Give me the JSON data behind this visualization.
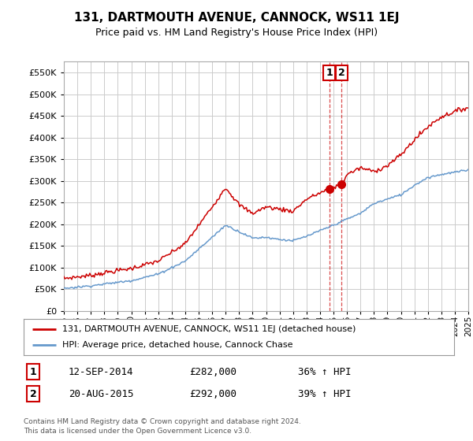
{
  "title": "131, DARTMOUTH AVENUE, CANNOCK, WS11 1EJ",
  "subtitle": "Price paid vs. HM Land Registry's House Price Index (HPI)",
  "legend_line1": "131, DARTMOUTH AVENUE, CANNOCK, WS11 1EJ (detached house)",
  "legend_line2": "HPI: Average price, detached house, Cannock Chase",
  "annotation1_label": "1",
  "annotation1_date": "12-SEP-2014",
  "annotation1_price": "£282,000",
  "annotation1_hpi": "36% ↑ HPI",
  "annotation2_label": "2",
  "annotation2_date": "20-AUG-2015",
  "annotation2_price": "£292,000",
  "annotation2_hpi": "39% ↑ HPI",
  "footnote1": "Contains HM Land Registry data © Crown copyright and database right 2024.",
  "footnote2": "This data is licensed under the Open Government Licence v3.0.",
  "red_color": "#cc0000",
  "blue_color": "#6699cc",
  "vline_color": "#cc0000",
  "dot_color": "#cc0000",
  "background_color": "#ffffff",
  "grid_color": "#cccccc",
  "ylim": [
    0,
    575000
  ],
  "yticks": [
    0,
    50000,
    100000,
    150000,
    200000,
    250000,
    300000,
    350000,
    400000,
    450000,
    500000,
    550000
  ],
  "year_start": 1995,
  "year_end": 2025,
  "sale1_year": 2014.7,
  "sale1_value": 282000,
  "sale2_year": 2015.6,
  "sale2_value": 292000
}
